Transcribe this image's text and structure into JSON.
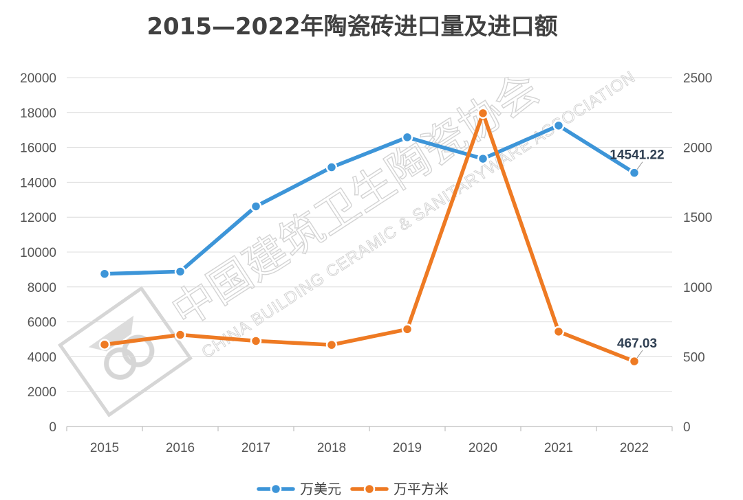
{
  "chart_data": {
    "type": "line",
    "title": "2015—2022年陶瓷砖进口量及进口额",
    "categories": [
      "2015",
      "2016",
      "2017",
      "2018",
      "2019",
      "2020",
      "2021",
      "2022"
    ],
    "y_left": {
      "ylim": [
        0,
        20000
      ],
      "ticks": [
        "0",
        "2000",
        "4000",
        "6000",
        "8000",
        "10000",
        "12000",
        "14000",
        "16000",
        "18000",
        "20000"
      ]
    },
    "y_right": {
      "ylim": [
        0,
        2500
      ],
      "ticks": [
        "0",
        "500",
        "1000",
        "1500",
        "2000",
        "2500"
      ]
    },
    "grid": true,
    "legend_position": "bottom",
    "series": [
      {
        "name": "万美元",
        "axis": "left",
        "color": "#3d95d8",
        "values": [
          8750,
          8880,
          12620,
          14860,
          16580,
          15350,
          17250,
          14541.22
        ]
      },
      {
        "name": "万平方米",
        "axis": "right",
        "color": "#ee7a23",
        "values": [
          587,
          657,
          613,
          585,
          697,
          2245,
          680,
          467.03
        ]
      }
    ],
    "data_labels": [
      {
        "series": 0,
        "index": 7,
        "text": "14541.22"
      },
      {
        "series": 1,
        "index": 7,
        "text": "467.03"
      }
    ]
  },
  "watermark": {
    "cn": "中国建筑卫生陶瓷协会",
    "en": "CHINA BUILDING CERAMIC & SANITARYWARE ASSOCIATION"
  }
}
